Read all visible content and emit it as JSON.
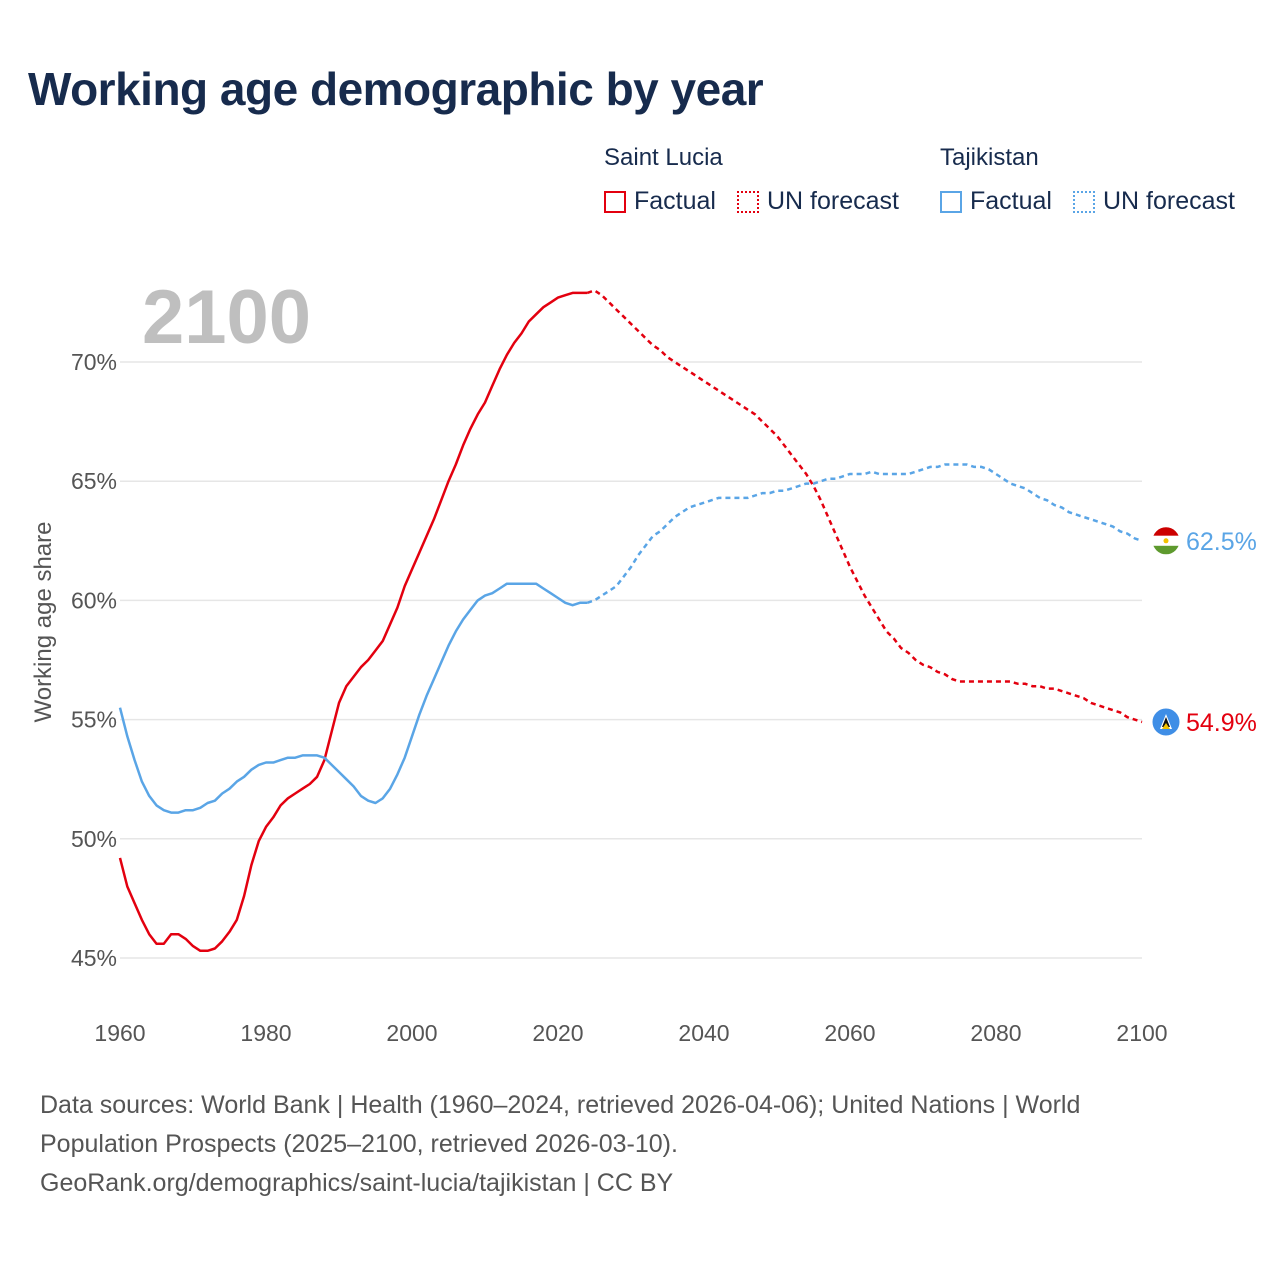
{
  "title": "Working age demographic by year",
  "legend": {
    "groups": [
      {
        "name": "Saint Lucia",
        "factual": "Factual",
        "forecast": "UN forecast",
        "color": "#e3000f"
      },
      {
        "name": "Tajikistan",
        "factual": "Factual",
        "forecast": "UN forecast",
        "color": "#5aa5e6"
      }
    ]
  },
  "footer": {
    "line1": "Data sources: World Bank | Health (1960–2024, retrieved 2026-04-06); United Nations | World",
    "line2": "Population Prospects (2025–2100, retrieved 2026-03-10).",
    "line3": "GeoRank.org/demographics/saint-lucia/tajikistan | CC BY"
  },
  "chart_data": {
    "type": "line",
    "year_label": "2100",
    "ylabel": "Working age share",
    "xlim": [
      1960,
      2100
    ],
    "ylim": [
      44.5,
      71.5
    ],
    "x_ticks": [
      "1960",
      "1980",
      "2000",
      "2020",
      "2040",
      "2060",
      "2080",
      "2100"
    ],
    "y_ticks": [
      "45%",
      "50%",
      "55%",
      "60%",
      "65%",
      "70%"
    ],
    "y_tick_values": [
      45,
      50,
      55,
      60,
      65,
      70
    ],
    "forecast_start": 2024,
    "series": [
      {
        "name": "Saint Lucia",
        "color": "#e3000f",
        "end_label": "54.9%",
        "flag": "saint-lucia-flag",
        "points": [
          [
            1960,
            49.2
          ],
          [
            1961,
            48.0
          ],
          [
            1962,
            47.3
          ],
          [
            1963,
            46.6
          ],
          [
            1964,
            46.0
          ],
          [
            1965,
            45.6
          ],
          [
            1966,
            45.6
          ],
          [
            1967,
            46.0
          ],
          [
            1968,
            46.0
          ],
          [
            1969,
            45.8
          ],
          [
            1970,
            45.5
          ],
          [
            1971,
            45.3
          ],
          [
            1972,
            45.3
          ],
          [
            1973,
            45.4
          ],
          [
            1974,
            45.7
          ],
          [
            1975,
            46.1
          ],
          [
            1976,
            46.6
          ],
          [
            1977,
            47.6
          ],
          [
            1978,
            48.9
          ],
          [
            1979,
            49.9
          ],
          [
            1980,
            50.5
          ],
          [
            1981,
            50.9
          ],
          [
            1982,
            51.4
          ],
          [
            1983,
            51.7
          ],
          [
            1984,
            51.9
          ],
          [
            1985,
            52.1
          ],
          [
            1986,
            52.3
          ],
          [
            1987,
            52.6
          ],
          [
            1988,
            53.3
          ],
          [
            1989,
            54.5
          ],
          [
            1990,
            55.7
          ],
          [
            1991,
            56.4
          ],
          [
            1992,
            56.8
          ],
          [
            1993,
            57.2
          ],
          [
            1994,
            57.5
          ],
          [
            1995,
            57.9
          ],
          [
            1996,
            58.3
          ],
          [
            1997,
            59.0
          ],
          [
            1998,
            59.7
          ],
          [
            1999,
            60.6
          ],
          [
            2000,
            61.3
          ],
          [
            2001,
            62.0
          ],
          [
            2002,
            62.7
          ],
          [
            2003,
            63.4
          ],
          [
            2004,
            64.2
          ],
          [
            2005,
            65.0
          ],
          [
            2006,
            65.7
          ],
          [
            2007,
            66.5
          ],
          [
            2008,
            67.2
          ],
          [
            2009,
            67.8
          ],
          [
            2010,
            68.3
          ],
          [
            2011,
            69.0
          ],
          [
            2012,
            69.7
          ],
          [
            2013,
            70.3
          ],
          [
            2014,
            70.8
          ],
          [
            2015,
            71.2
          ],
          [
            2016,
            71.7
          ],
          [
            2017,
            72.0
          ],
          [
            2018,
            72.3
          ],
          [
            2019,
            72.5
          ],
          [
            2020,
            72.7
          ],
          [
            2021,
            72.8
          ],
          [
            2022,
            72.9
          ],
          [
            2023,
            72.9
          ],
          [
            2024,
            72.9
          ],
          [
            2025,
            73.0
          ],
          [
            2026,
            72.8
          ],
          [
            2027,
            72.5
          ],
          [
            2028,
            72.2
          ],
          [
            2029,
            71.9
          ],
          [
            2030,
            71.6
          ],
          [
            2031,
            71.3
          ],
          [
            2032,
            71.0
          ],
          [
            2033,
            70.7
          ],
          [
            2034,
            70.5
          ],
          [
            2035,
            70.2
          ],
          [
            2036,
            70.0
          ],
          [
            2037,
            69.8
          ],
          [
            2038,
            69.6
          ],
          [
            2039,
            69.4
          ],
          [
            2040,
            69.2
          ],
          [
            2041,
            69.0
          ],
          [
            2042,
            68.8
          ],
          [
            2043,
            68.6
          ],
          [
            2044,
            68.4
          ],
          [
            2045,
            68.2
          ],
          [
            2046,
            68.0
          ],
          [
            2047,
            67.8
          ],
          [
            2048,
            67.5
          ],
          [
            2049,
            67.2
          ],
          [
            2050,
            66.9
          ],
          [
            2051,
            66.5
          ],
          [
            2052,
            66.1
          ],
          [
            2053,
            65.7
          ],
          [
            2054,
            65.3
          ],
          [
            2055,
            64.8
          ],
          [
            2056,
            64.2
          ],
          [
            2057,
            63.5
          ],
          [
            2058,
            62.8
          ],
          [
            2059,
            62.1
          ],
          [
            2060,
            61.4
          ],
          [
            2061,
            60.8
          ],
          [
            2062,
            60.2
          ],
          [
            2063,
            59.7
          ],
          [
            2064,
            59.2
          ],
          [
            2065,
            58.7
          ],
          [
            2066,
            58.4
          ],
          [
            2067,
            58.0
          ],
          [
            2068,
            57.8
          ],
          [
            2069,
            57.5
          ],
          [
            2070,
            57.3
          ],
          [
            2071,
            57.2
          ],
          [
            2072,
            57.0
          ],
          [
            2073,
            56.9
          ],
          [
            2074,
            56.7
          ],
          [
            2075,
            56.6
          ],
          [
            2076,
            56.6
          ],
          [
            2077,
            56.6
          ],
          [
            2078,
            56.6
          ],
          [
            2079,
            56.6
          ],
          [
            2080,
            56.6
          ],
          [
            2081,
            56.6
          ],
          [
            2082,
            56.6
          ],
          [
            2083,
            56.5
          ],
          [
            2084,
            56.5
          ],
          [
            2085,
            56.4
          ],
          [
            2086,
            56.4
          ],
          [
            2087,
            56.3
          ],
          [
            2088,
            56.3
          ],
          [
            2089,
            56.2
          ],
          [
            2090,
            56.1
          ],
          [
            2091,
            56.0
          ],
          [
            2092,
            55.9
          ],
          [
            2093,
            55.7
          ],
          [
            2094,
            55.6
          ],
          [
            2095,
            55.5
          ],
          [
            2096,
            55.4
          ],
          [
            2097,
            55.3
          ],
          [
            2098,
            55.1
          ],
          [
            2099,
            55.0
          ],
          [
            2100,
            54.9
          ]
        ]
      },
      {
        "name": "Tajikistan",
        "color": "#5aa5e6",
        "end_label": "62.5%",
        "flag": "tajikistan-flag",
        "points": [
          [
            1960,
            55.5
          ],
          [
            1961,
            54.3
          ],
          [
            1962,
            53.3
          ],
          [
            1963,
            52.4
          ],
          [
            1964,
            51.8
          ],
          [
            1965,
            51.4
          ],
          [
            1966,
            51.2
          ],
          [
            1967,
            51.1
          ],
          [
            1968,
            51.1
          ],
          [
            1969,
            51.2
          ],
          [
            1970,
            51.2
          ],
          [
            1971,
            51.3
          ],
          [
            1972,
            51.5
          ],
          [
            1973,
            51.6
          ],
          [
            1974,
            51.9
          ],
          [
            1975,
            52.1
          ],
          [
            1976,
            52.4
          ],
          [
            1977,
            52.6
          ],
          [
            1978,
            52.9
          ],
          [
            1979,
            53.1
          ],
          [
            1980,
            53.2
          ],
          [
            1981,
            53.2
          ],
          [
            1982,
            53.3
          ],
          [
            1983,
            53.4
          ],
          [
            1984,
            53.4
          ],
          [
            1985,
            53.5
          ],
          [
            1986,
            53.5
          ],
          [
            1987,
            53.5
          ],
          [
            1988,
            53.4
          ],
          [
            1989,
            53.1
          ],
          [
            1990,
            52.8
          ],
          [
            1991,
            52.5
          ],
          [
            1992,
            52.2
          ],
          [
            1993,
            51.8
          ],
          [
            1994,
            51.6
          ],
          [
            1995,
            51.5
          ],
          [
            1996,
            51.7
          ],
          [
            1997,
            52.1
          ],
          [
            1998,
            52.7
          ],
          [
            1999,
            53.4
          ],
          [
            2000,
            54.3
          ],
          [
            2001,
            55.2
          ],
          [
            2002,
            56.0
          ],
          [
            2003,
            56.7
          ],
          [
            2004,
            57.4
          ],
          [
            2005,
            58.1
          ],
          [
            2006,
            58.7
          ],
          [
            2007,
            59.2
          ],
          [
            2008,
            59.6
          ],
          [
            2009,
            60.0
          ],
          [
            2010,
            60.2
          ],
          [
            2011,
            60.3
          ],
          [
            2012,
            60.5
          ],
          [
            2013,
            60.7
          ],
          [
            2014,
            60.7
          ],
          [
            2015,
            60.7
          ],
          [
            2016,
            60.7
          ],
          [
            2017,
            60.7
          ],
          [
            2018,
            60.5
          ],
          [
            2019,
            60.3
          ],
          [
            2020,
            60.1
          ],
          [
            2021,
            59.9
          ],
          [
            2022,
            59.8
          ],
          [
            2023,
            59.9
          ],
          [
            2024,
            59.9
          ],
          [
            2025,
            60.0
          ],
          [
            2026,
            60.2
          ],
          [
            2027,
            60.4
          ],
          [
            2028,
            60.6
          ],
          [
            2029,
            61.0
          ],
          [
            2030,
            61.4
          ],
          [
            2031,
            61.9
          ],
          [
            2032,
            62.3
          ],
          [
            2033,
            62.7
          ],
          [
            2034,
            62.9
          ],
          [
            2035,
            63.2
          ],
          [
            2036,
            63.5
          ],
          [
            2037,
            63.7
          ],
          [
            2038,
            63.9
          ],
          [
            2039,
            64.0
          ],
          [
            2040,
            64.1
          ],
          [
            2041,
            64.2
          ],
          [
            2042,
            64.3
          ],
          [
            2043,
            64.3
          ],
          [
            2044,
            64.3
          ],
          [
            2045,
            64.3
          ],
          [
            2046,
            64.3
          ],
          [
            2047,
            64.4
          ],
          [
            2048,
            64.5
          ],
          [
            2049,
            64.5
          ],
          [
            2050,
            64.6
          ],
          [
            2051,
            64.6
          ],
          [
            2052,
            64.7
          ],
          [
            2053,
            64.8
          ],
          [
            2054,
            64.9
          ],
          [
            2055,
            64.9
          ],
          [
            2056,
            65.0
          ],
          [
            2057,
            65.1
          ],
          [
            2058,
            65.1
          ],
          [
            2059,
            65.2
          ],
          [
            2060,
            65.3
          ],
          [
            2061,
            65.3
          ],
          [
            2062,
            65.3
          ],
          [
            2063,
            65.4
          ],
          [
            2064,
            65.3
          ],
          [
            2065,
            65.3
          ],
          [
            2066,
            65.3
          ],
          [
            2067,
            65.3
          ],
          [
            2068,
            65.3
          ],
          [
            2069,
            65.4
          ],
          [
            2070,
            65.5
          ],
          [
            2071,
            65.6
          ],
          [
            2072,
            65.6
          ],
          [
            2073,
            65.7
          ],
          [
            2074,
            65.7
          ],
          [
            2075,
            65.7
          ],
          [
            2076,
            65.7
          ],
          [
            2077,
            65.6
          ],
          [
            2078,
            65.6
          ],
          [
            2079,
            65.5
          ],
          [
            2080,
            65.3
          ],
          [
            2081,
            65.1
          ],
          [
            2082,
            64.9
          ],
          [
            2083,
            64.8
          ],
          [
            2084,
            64.7
          ],
          [
            2085,
            64.5
          ],
          [
            2086,
            64.3
          ],
          [
            2087,
            64.2
          ],
          [
            2088,
            64.0
          ],
          [
            2089,
            63.9
          ],
          [
            2090,
            63.7
          ],
          [
            2091,
            63.6
          ],
          [
            2092,
            63.5
          ],
          [
            2093,
            63.4
          ],
          [
            2094,
            63.3
          ],
          [
            2095,
            63.2
          ],
          [
            2096,
            63.1
          ],
          [
            2097,
            62.9
          ],
          [
            2098,
            62.8
          ],
          [
            2099,
            62.6
          ],
          [
            2100,
            62.5
          ]
        ]
      }
    ]
  }
}
